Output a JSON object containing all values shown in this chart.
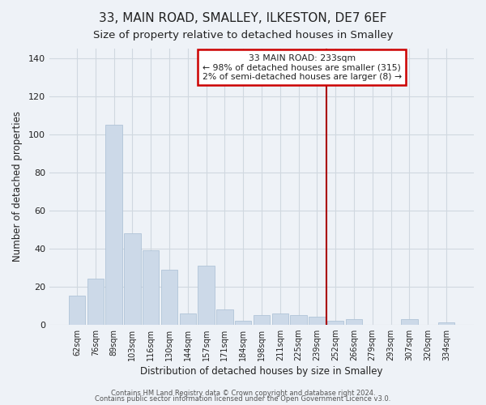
{
  "title": "33, MAIN ROAD, SMALLEY, ILKESTON, DE7 6EF",
  "subtitle": "Size of property relative to detached houses in Smalley",
  "xlabel": "Distribution of detached houses by size in Smalley",
  "ylabel": "Number of detached properties",
  "bar_labels": [
    "62sqm",
    "76sqm",
    "89sqm",
    "103sqm",
    "116sqm",
    "130sqm",
    "144sqm",
    "157sqm",
    "171sqm",
    "184sqm",
    "198sqm",
    "211sqm",
    "225sqm",
    "239sqm",
    "252sqm",
    "266sqm",
    "279sqm",
    "293sqm",
    "307sqm",
    "320sqm",
    "334sqm"
  ],
  "bar_values": [
    15,
    24,
    105,
    48,
    39,
    29,
    6,
    31,
    8,
    2,
    5,
    6,
    5,
    4,
    2,
    3,
    0,
    0,
    3,
    0,
    1
  ],
  "bar_color": "#ccd9e8",
  "bar_edge_color": "#b0c4d8",
  "vline_x_index": 13,
  "vline_color": "#aa0000",
  "ylim": [
    0,
    145
  ],
  "yticks": [
    0,
    20,
    40,
    60,
    80,
    100,
    120,
    140
  ],
  "annotation_title": "33 MAIN ROAD: 233sqm",
  "annotation_line1": "← 98% of detached houses are smaller (315)",
  "annotation_line2": "2% of semi-detached houses are larger (8) →",
  "footer1": "Contains HM Land Registry data © Crown copyright and database right 2024.",
  "footer2": "Contains public sector information licensed under the Open Government Licence v3.0.",
  "background_color": "#eef2f7",
  "plot_background_color": "#eef2f7",
  "grid_color": "#d0d8e0",
  "title_fontsize": 11,
  "subtitle_fontsize": 9.5
}
